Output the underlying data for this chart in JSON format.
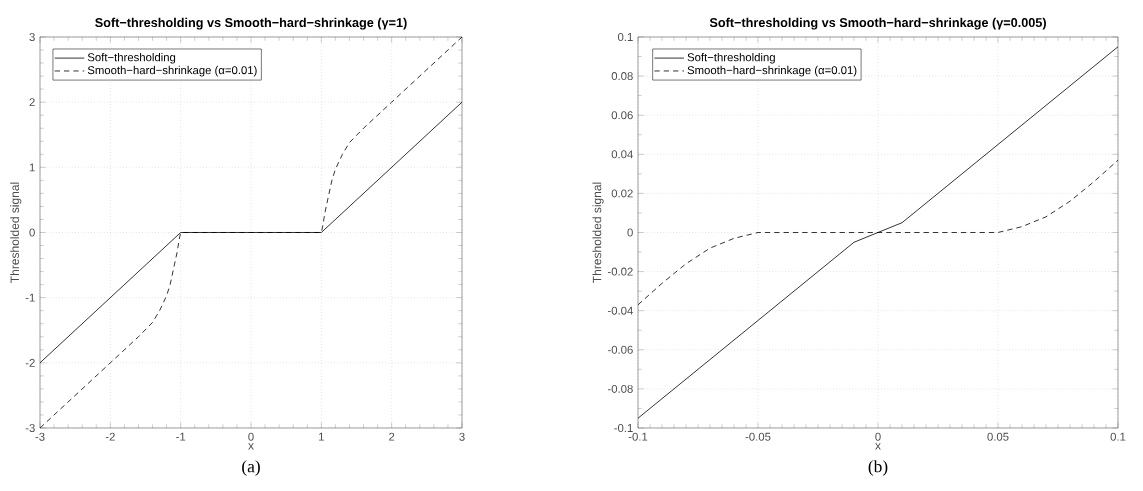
{
  "chart_data": [
    {
      "type": "line",
      "title": "Soft−thresholding vs Smooth−hard−shrinkage (γ=1)",
      "xlabel": "x",
      "ylabel": "Thresholded signal",
      "annotations": [
        "(a)"
      ],
      "xlim": [
        -3,
        3
      ],
      "ylim": [
        -3,
        3
      ],
      "xticks": [
        -3,
        -2,
        -1,
        0,
        1,
        2,
        3
      ],
      "yticks": [
        -3,
        -2,
        -1,
        0,
        1,
        2,
        3
      ],
      "grid": true,
      "legend": "top left",
      "series": [
        {
          "name": "Soft−thresholding",
          "color": "#000000",
          "line_style": "solid",
          "x": [
            -3,
            -1,
            1,
            3
          ],
          "values": [
            -2,
            0,
            0,
            2
          ]
        },
        {
          "name": "Smooth−hard−shrinkage (α=0.01)",
          "color": "#000000",
          "line_style": "dashed",
          "x": [
            -3,
            -2,
            -1.6,
            -1.4,
            -1.3,
            -1.2,
            -1.15,
            -1.1,
            -1.05,
            -1.02,
            -1,
            1,
            1.02,
            1.05,
            1.1,
            1.15,
            1.2,
            1.3,
            1.4,
            1.6,
            2,
            3
          ],
          "values": [
            -3,
            -2,
            -1.6,
            -1.38,
            -1.2,
            -0.97,
            -0.8,
            -0.55,
            -0.3,
            -0.1,
            0,
            0,
            0.1,
            0.3,
            0.55,
            0.8,
            0.97,
            1.2,
            1.38,
            1.6,
            2,
            3
          ]
        }
      ]
    },
    {
      "type": "line",
      "title": "Soft−thresholding vs Smooth−hard−shrinkage (γ=0.005)",
      "xlabel": "x",
      "ylabel": "Thresholded signal",
      "annotations": [
        "(b)"
      ],
      "xlim": [
        -0.1,
        0.1
      ],
      "ylim": [
        -0.1,
        0.1
      ],
      "xticks": [
        -0.1,
        -0.05,
        0,
        0.05,
        0.1
      ],
      "yticks": [
        -0.1,
        -0.08,
        -0.06,
        -0.04,
        -0.02,
        0,
        0.02,
        0.04,
        0.06,
        0.08,
        0.1
      ],
      "grid": true,
      "legend": "top left",
      "series": [
        {
          "name": "Soft−thresholding",
          "color": "#000000",
          "line_style": "solid",
          "x": [
            -0.1,
            -0.01,
            0.01,
            0.1
          ],
          "values": [
            -0.095,
            -0.005,
            0.005,
            0.095
          ]
        },
        {
          "name": "Smooth−hard−shrinkage (α=0.01)",
          "color": "#000000",
          "line_style": "dashed",
          "x": [
            -0.1,
            -0.09,
            -0.08,
            -0.07,
            -0.06,
            -0.05,
            0.05,
            0.06,
            0.07,
            0.08,
            0.09,
            0.1
          ],
          "values": [
            -0.037,
            -0.026,
            -0.016,
            -0.008,
            -0.003,
            0,
            0,
            0.003,
            0.008,
            0.016,
            0.026,
            0.037
          ]
        }
      ]
    }
  ]
}
